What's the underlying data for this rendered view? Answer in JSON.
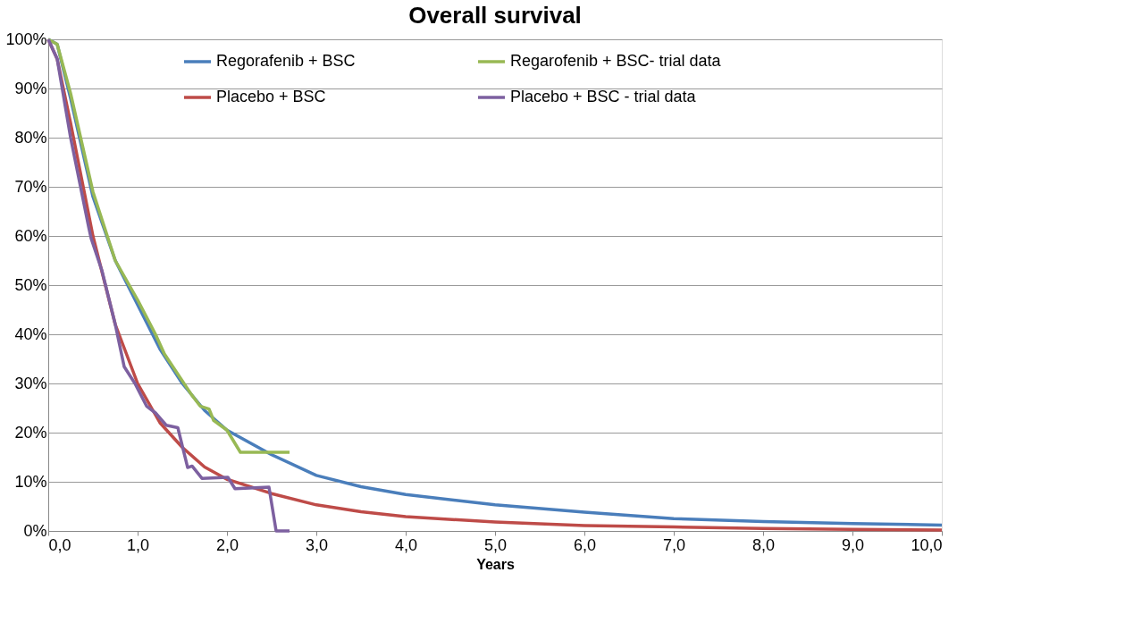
{
  "chart_data": {
    "type": "line",
    "title": "Overall survival",
    "xlabel": "Years",
    "xlim": [
      0,
      10
    ],
    "ylim": [
      0,
      100
    ],
    "xticks": [
      {
        "value": 0,
        "label": "0,0"
      },
      {
        "value": 1,
        "label": "1,0"
      },
      {
        "value": 2,
        "label": "2,0"
      },
      {
        "value": 3,
        "label": "3,0"
      },
      {
        "value": 4,
        "label": "4,0"
      },
      {
        "value": 5,
        "label": "5,0"
      },
      {
        "value": 6,
        "label": "6,0"
      },
      {
        "value": 7,
        "label": "7,0"
      },
      {
        "value": 8,
        "label": "8,0"
      },
      {
        "value": 9,
        "label": "9,0"
      },
      {
        "value": 10,
        "label": "10,0"
      }
    ],
    "yticks": [
      {
        "value": 0,
        "label": "0%"
      },
      {
        "value": 10,
        "label": "10%"
      },
      {
        "value": 20,
        "label": "20%"
      },
      {
        "value": 30,
        "label": "30%"
      },
      {
        "value": 40,
        "label": "40%"
      },
      {
        "value": 50,
        "label": "50%"
      },
      {
        "value": 60,
        "label": "60%"
      },
      {
        "value": 70,
        "label": "70%"
      },
      {
        "value": 80,
        "label": "80%"
      },
      {
        "value": 90,
        "label": "90%"
      },
      {
        "value": 100,
        "label": "100%"
      }
    ],
    "grid": "y",
    "legend": "top",
    "marker": "none",
    "line_style": "solid",
    "series": [
      {
        "name": "Regorafenib + BSC",
        "color": "#4a7ebb",
        "x": [
          0,
          0.1,
          0.25,
          0.5,
          0.75,
          1.0,
          1.25,
          1.5,
          1.75,
          2.0,
          2.5,
          3.0,
          3.5,
          4.0,
          5.0,
          6.0,
          7.0,
          8.0,
          9.0,
          10.0
        ],
        "values": [
          100,
          99,
          88,
          68,
          55,
          46,
          37,
          30,
          24.5,
          20.5,
          15.5,
          11.3,
          9,
          7.4,
          5.3,
          3.8,
          2.5,
          1.9,
          1.5,
          1.2
        ]
      },
      {
        "name": "Placebo + BSC",
        "color": "#be4b48",
        "x": [
          0,
          0.1,
          0.25,
          0.5,
          0.75,
          1.0,
          1.25,
          1.5,
          1.75,
          2.0,
          2.5,
          3.0,
          3.5,
          4.0,
          5.0,
          6.0,
          7.0,
          8.0,
          9.0,
          10.0
        ],
        "values": [
          100,
          96,
          83,
          60,
          42,
          30,
          22,
          17,
          13,
          10.5,
          7.6,
          5.3,
          3.9,
          2.9,
          1.8,
          1.1,
          0.8,
          0.5,
          0.3,
          0.2
        ]
      },
      {
        "name": "Regarofenib + BSC- trial data",
        "color": "#98b954",
        "x": [
          0,
          0.1,
          0.25,
          0.5,
          0.75,
          1.0,
          1.2,
          1.3,
          1.6,
          1.7,
          1.8,
          1.85,
          2.0,
          2.15,
          2.2,
          2.7
        ],
        "values": [
          100,
          99,
          89,
          69,
          55,
          47,
          40,
          36,
          27.8,
          25.4,
          24.8,
          22.5,
          20.5,
          16,
          16,
          16
        ]
      },
      {
        "name": "Placebo + BSC - trial data",
        "color": "#7d60a0",
        "x": [
          0,
          0.1,
          0.25,
          0.45,
          0.48,
          0.6,
          0.75,
          0.85,
          0.97,
          1.1,
          1.2,
          1.32,
          1.45,
          1.56,
          1.61,
          1.72,
          2.01,
          2.09,
          2.47,
          2.55,
          2.7
        ],
        "values": [
          100,
          96,
          80,
          62,
          59.5,
          53,
          42,
          33.4,
          30,
          25.4,
          24,
          21.5,
          21,
          12.9,
          13.2,
          10.7,
          10.9,
          8.6,
          8.9,
          0,
          0
        ]
      }
    ]
  }
}
